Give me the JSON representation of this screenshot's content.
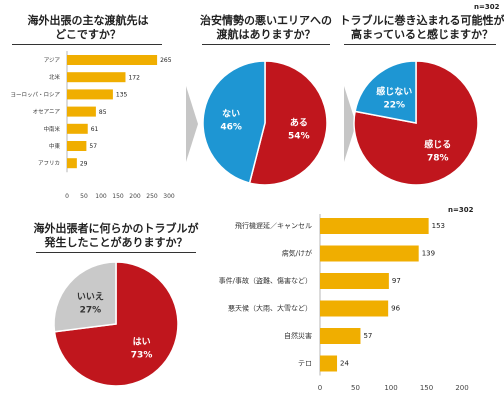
{
  "n_label": "n=302",
  "colors": {
    "bar": "#F0AE00",
    "red": "#C0161D",
    "blue": "#1E96D3",
    "gray": "#C9C9C9",
    "arrow": "#C6C6C6"
  },
  "chart_data": [
    {
      "type": "bar",
      "orientation": "horizontal",
      "title": "海外出張の主な渡航先は\nどこですか？",
      "categories": [
        "アジア",
        "北米",
        "ヨーロッパ・ロシア",
        "オセアニア",
        "中南米",
        "中東",
        "アフリカ"
      ],
      "values": [
        265,
        172,
        135,
        85,
        61,
        57,
        29
      ],
      "xlim": [
        0,
        300
      ],
      "ticks": [
        "0",
        "50",
        "100",
        "150",
        "200",
        "250",
        "300"
      ],
      "grid": false
    },
    {
      "type": "pie",
      "title": "治安情勢の悪いエリアへの\n渡航はありますか？",
      "slices": [
        {
          "label": "ある",
          "value": 54,
          "text": "54%"
        },
        {
          "label": "ない",
          "value": 46,
          "text": "46%"
        }
      ]
    },
    {
      "type": "pie",
      "title": "トラブルに巻き込まれる可能性が\n高まっていると感じますか？",
      "slices": [
        {
          "label": "感じる",
          "value": 78,
          "text": "78%"
        },
        {
          "label": "感じない",
          "value": 22,
          "text": "22%"
        }
      ]
    },
    {
      "type": "pie",
      "title": "海外出張者に何らかのトラブルが\n発生したことがありますか？",
      "slices": [
        {
          "label": "はい",
          "value": 73,
          "text": "73%"
        },
        {
          "label": "いいえ",
          "value": 27,
          "text": "27%"
        }
      ]
    },
    {
      "type": "bar",
      "orientation": "horizontal",
      "categories": [
        "飛行機遅延／キャンセル",
        "病気/けが",
        "事件/事故（盗難、傷害など）",
        "悪天候（大雨、大雪など）",
        "自然災害",
        "テロ"
      ],
      "values": [
        153,
        139,
        97,
        96,
        57,
        24
      ],
      "xlim": [
        0,
        200
      ],
      "ticks": [
        "0",
        "50",
        "100",
        "150",
        "200"
      ],
      "grid": false
    }
  ]
}
